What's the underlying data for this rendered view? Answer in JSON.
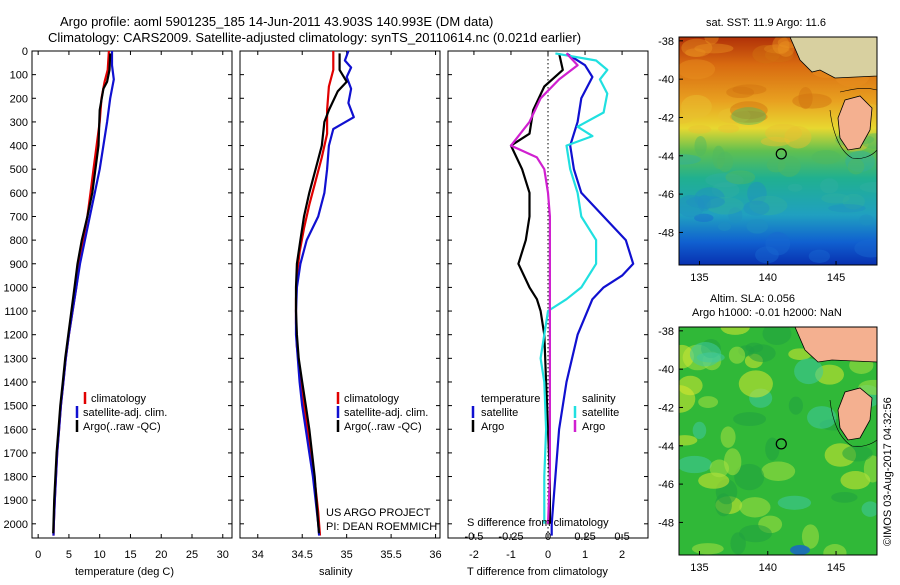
{
  "title": {
    "line1": "Argo profile: aoml 5901235_185 14-Jun-2011 43.903S 140.993E (DM data)",
    "line2": "Climatology: CARS2009. Satellite-adjusted climatology: synTS_20110614.nc (0.021d earlier)"
  },
  "colors": {
    "climatology": "#e00000",
    "satellite": "#1010d0",
    "argo": "#000000",
    "sat_s": "#20e0e0",
    "argo_s": "#d020d0"
  },
  "y_axis": {
    "ticks": [
      "0",
      "100",
      "200",
      "300",
      "400",
      "500",
      "600",
      "700",
      "800",
      "900",
      "1000",
      "1100",
      "1200",
      "1300",
      "1400",
      "1500",
      "1600",
      "1700",
      "1800",
      "1900",
      "2000"
    ]
  },
  "chart_data": [
    {
      "type": "line",
      "id": "temperature",
      "xlabel": "temperature (deg C)",
      "xlim": [
        -1,
        31.5
      ],
      "xticks": [
        "0",
        "5",
        "10",
        "15",
        "20",
        "25",
        "30"
      ],
      "ylim": [
        2060,
        0
      ],
      "legend": [
        "climatology",
        "satellite-adj. clim.",
        "Argo(..raw -QC)"
      ],
      "series": [
        {
          "name": "climatology",
          "color": "#e00000",
          "points": [
            [
              11.5,
              0
            ],
            [
              11.3,
              80
            ],
            [
              10.8,
              130
            ],
            [
              10.3,
              200
            ],
            [
              10.0,
              300
            ],
            [
              9.5,
              400
            ],
            [
              9.0,
              500
            ],
            [
              8.5,
              600
            ],
            [
              8.0,
              700
            ],
            [
              7.3,
              800
            ],
            [
              6.7,
              900
            ],
            [
              6.2,
              1000
            ],
            [
              5.6,
              1100
            ],
            [
              5.0,
              1200
            ],
            [
              4.5,
              1300
            ],
            [
              4.1,
              1400
            ],
            [
              3.7,
              1500
            ],
            [
              3.4,
              1600
            ],
            [
              3.1,
              1700
            ],
            [
              2.9,
              1800
            ],
            [
              2.7,
              1900
            ],
            [
              2.55,
              2000
            ],
            [
              2.5,
              2050
            ]
          ]
        },
        {
          "name": "satellite-adj. clim.",
          "color": "#1010d0",
          "points": [
            [
              12.0,
              0
            ],
            [
              12.0,
              60
            ],
            [
              12.3,
              120
            ],
            [
              11.7,
              200
            ],
            [
              11.2,
              300
            ],
            [
              10.6,
              400
            ],
            [
              10.0,
              500
            ],
            [
              9.2,
              600
            ],
            [
              8.4,
              700
            ],
            [
              7.6,
              800
            ],
            [
              6.8,
              900
            ],
            [
              6.2,
              1000
            ],
            [
              5.6,
              1100
            ],
            [
              5.0,
              1200
            ],
            [
              4.5,
              1300
            ],
            [
              4.1,
              1400
            ],
            [
              3.7,
              1500
            ],
            [
              3.4,
              1600
            ],
            [
              3.1,
              1700
            ],
            [
              2.9,
              1800
            ],
            [
              2.7,
              1900
            ],
            [
              2.55,
              2000
            ],
            [
              2.5,
              2050
            ]
          ]
        },
        {
          "name": "Argo(..raw -QC)",
          "color": "#000000",
          "points": [
            [
              11.7,
              10
            ],
            [
              11.6,
              80
            ],
            [
              11.2,
              130
            ],
            [
              10.6,
              160
            ],
            [
              10.0,
              250
            ],
            [
              9.8,
              400
            ],
            [
              9.3,
              500
            ],
            [
              8.8,
              600
            ],
            [
              8.0,
              700
            ],
            [
              7.1,
              800
            ],
            [
              6.4,
              900
            ],
            [
              5.9,
              1000
            ],
            [
              5.4,
              1100
            ],
            [
              4.9,
              1200
            ],
            [
              4.4,
              1300
            ],
            [
              4.0,
              1400
            ],
            [
              3.6,
              1500
            ],
            [
              3.3,
              1600
            ],
            [
              3.0,
              1700
            ],
            [
              2.8,
              1800
            ],
            [
              2.6,
              1900
            ],
            [
              2.5,
              2000
            ],
            [
              2.45,
              2040
            ]
          ]
        }
      ]
    },
    {
      "type": "line",
      "id": "salinity",
      "xlabel": "salinity",
      "xlim": [
        33.8,
        36.05
      ],
      "xticks": [
        "34",
        "34.5",
        "35",
        "35.5",
        "36"
      ],
      "ylim": [
        2060,
        0
      ],
      "legend": [
        "climatology",
        "satellite-adj. clim.",
        "Argo(..raw -QC)"
      ],
      "annotation": [
        "US ARGO PROJECT",
        "PI: DEAN ROEMMICH"
      ],
      "series": [
        {
          "name": "climatology",
          "color": "#e00000",
          "points": [
            [
              34.85,
              0
            ],
            [
              34.85,
              80
            ],
            [
              34.8,
              150
            ],
            [
              34.78,
              250
            ],
            [
              34.78,
              350
            ],
            [
              34.72,
              450
            ],
            [
              34.65,
              550
            ],
            [
              34.58,
              650
            ],
            [
              34.52,
              750
            ],
            [
              34.47,
              850
            ],
            [
              34.44,
              950
            ],
            [
              34.43,
              1050
            ],
            [
              34.43,
              1150
            ],
            [
              34.44,
              1250
            ],
            [
              34.47,
              1350
            ],
            [
              34.5,
              1450
            ],
            [
              34.54,
              1550
            ],
            [
              34.58,
              1650
            ],
            [
              34.62,
              1750
            ],
            [
              34.65,
              1850
            ],
            [
              34.68,
              1950
            ],
            [
              34.7,
              2050
            ]
          ]
        },
        {
          "name": "satellite-adj. clim.",
          "color": "#1010d0",
          "points": [
            [
              35.02,
              0
            ],
            [
              34.98,
              40
            ],
            [
              35.05,
              70
            ],
            [
              35.0,
              110
            ],
            [
              35.05,
              160
            ],
            [
              35.02,
              220
            ],
            [
              35.08,
              280
            ],
            [
              34.85,
              330
            ],
            [
              34.8,
              400
            ],
            [
              34.78,
              500
            ],
            [
              34.75,
              600
            ],
            [
              34.68,
              700
            ],
            [
              34.55,
              800
            ],
            [
              34.48,
              900
            ],
            [
              34.44,
              1000
            ],
            [
              34.43,
              1100
            ],
            [
              34.43,
              1200
            ],
            [
              34.45,
              1300
            ],
            [
              34.47,
              1400
            ],
            [
              34.5,
              1500
            ],
            [
              34.54,
              1600
            ],
            [
              34.58,
              1700
            ],
            [
              34.62,
              1800
            ],
            [
              34.65,
              1900
            ],
            [
              34.68,
              2000
            ],
            [
              34.69,
              2050
            ]
          ]
        },
        {
          "name": "Argo(..raw -QC)",
          "color": "#000000",
          "points": [
            [
              34.92,
              10
            ],
            [
              34.92,
              80
            ],
            [
              35.0,
              130
            ],
            [
              34.9,
              170
            ],
            [
              34.8,
              250
            ],
            [
              34.75,
              300
            ],
            [
              34.72,
              400
            ],
            [
              34.65,
              500
            ],
            [
              34.58,
              600
            ],
            [
              34.52,
              700
            ],
            [
              34.48,
              800
            ],
            [
              34.44,
              900
            ],
            [
              34.43,
              1000
            ],
            [
              34.43,
              1100
            ],
            [
              34.44,
              1200
            ],
            [
              34.46,
              1300
            ],
            [
              34.5,
              1400
            ],
            [
              34.54,
              1500
            ],
            [
              34.58,
              1600
            ],
            [
              34.61,
              1700
            ],
            [
              34.64,
              1800
            ],
            [
              34.66,
              1900
            ],
            [
              34.68,
              2000
            ],
            [
              34.69,
              2040
            ]
          ]
        }
      ]
    },
    {
      "type": "line",
      "id": "difference",
      "xlabel": "T difference from climatology",
      "xlabel_top": "S difference from climatology",
      "xlim": [
        -2.7,
        2.7
      ],
      "xticks_T": [
        "-2",
        "-1",
        "0",
        "1",
        "2"
      ],
      "xticks_S": [
        "-0.5",
        "-0.25",
        "0",
        "0.25",
        "0.5"
      ],
      "ylim": [
        2060,
        0
      ],
      "legend": {
        "temperature_header": "temperature",
        "salinity_header": "salinity",
        "entries": [
          "satellite",
          "Argo",
          "satellite",
          "Argo"
        ]
      },
      "series": [
        {
          "name": "temperature satellite",
          "color": "#1010d0",
          "points": [
            [
              0.5,
              10
            ],
            [
              1.0,
              60
            ],
            [
              1.2,
              110
            ],
            [
              0.9,
              200
            ],
            [
              0.8,
              300
            ],
            [
              0.6,
              400
            ],
            [
              0.7,
              500
            ],
            [
              0.9,
              600
            ],
            [
              1.5,
              700
            ],
            [
              2.1,
              800
            ],
            [
              2.3,
              900
            ],
            [
              2.0,
              950
            ],
            [
              1.5,
              1000
            ],
            [
              1.2,
              1050
            ],
            [
              0.8,
              1200
            ],
            [
              0.5,
              1400
            ],
            [
              0.3,
              1600
            ],
            [
              0.2,
              1800
            ],
            [
              0.1,
              2000
            ],
            [
              0.1,
              2050
            ]
          ]
        },
        {
          "name": "temperature Argo",
          "color": "#000000",
          "points": [
            [
              0.3,
              10
            ],
            [
              0.4,
              80
            ],
            [
              -0.1,
              150
            ],
            [
              -0.4,
              250
            ],
            [
              -0.5,
              350
            ],
            [
              -1.0,
              400
            ],
            [
              -0.7,
              500
            ],
            [
              -0.5,
              600
            ],
            [
              -0.5,
              700
            ],
            [
              -0.6,
              800
            ],
            [
              -0.8,
              900
            ],
            [
              -0.5,
              1000
            ],
            [
              -0.3,
              1050
            ],
            [
              -0.2,
              1100
            ],
            [
              -0.1,
              1200
            ],
            [
              -0.05,
              1400
            ],
            [
              0.0,
              1600
            ],
            [
              0.05,
              1800
            ],
            [
              0.05,
              2000
            ]
          ]
        },
        {
          "name": "salinity satellite",
          "color": "#20e0e0",
          "points": [
            [
              0.2,
              10
            ],
            [
              1.3,
              40
            ],
            [
              1.6,
              80
            ],
            [
              1.4,
              120
            ],
            [
              1.6,
              180
            ],
            [
              1.5,
              260
            ],
            [
              0.8,
              320
            ],
            [
              1.2,
              360
            ],
            [
              0.5,
              400
            ],
            [
              0.6,
              500
            ],
            [
              0.8,
              600
            ],
            [
              0.9,
              700
            ],
            [
              1.3,
              800
            ],
            [
              1.3,
              900
            ],
            [
              0.9,
              1000
            ],
            [
              0.5,
              1050
            ],
            [
              0.0,
              1100
            ],
            [
              -0.1,
              1200
            ],
            [
              -0.2,
              1300
            ],
            [
              -0.1,
              1400
            ],
            [
              -0.05,
              1600
            ],
            [
              -0.1,
              1800
            ],
            [
              -0.1,
              2000
            ]
          ]
        },
        {
          "name": "salinity Argo",
          "color": "#d020d0",
          "points": [
            [
              0.5,
              10
            ],
            [
              0.8,
              60
            ],
            [
              0.3,
              120
            ],
            [
              -0.2,
              200
            ],
            [
              -0.5,
              300
            ],
            [
              -1.0,
              400
            ],
            [
              -0.3,
              450
            ],
            [
              -0.1,
              500
            ],
            [
              0.0,
              600
            ],
            [
              0.05,
              700
            ],
            [
              0.05,
              800
            ],
            [
              0.05,
              1000
            ],
            [
              0.05,
              1200
            ],
            [
              0.05,
              1400
            ],
            [
              0.05,
              1600
            ],
            [
              0.05,
              1800
            ],
            [
              0.0,
              2000
            ]
          ]
        }
      ]
    },
    {
      "type": "heatmap",
      "id": "sst-map",
      "title": "sat. SST: 11.9 Argo: 11.6",
      "xticks": [
        "135",
        "140",
        "145"
      ],
      "yticks": [
        "-38",
        "-40",
        "-42",
        "-44",
        "-46",
        "-48"
      ],
      "argo_position": [
        140.99,
        -43.9
      ]
    },
    {
      "type": "heatmap",
      "id": "sla-map",
      "title_line1": "Altim. SLA: 0.056",
      "title_line2": "Argo h1000: -0.01 h2000: NaN",
      "xticks": [
        "135",
        "140",
        "145"
      ],
      "yticks": [
        "-38",
        "-40",
        "-42",
        "-44",
        "-46",
        "-48"
      ],
      "argo_position": [
        140.99,
        -43.9
      ]
    }
  ],
  "watermark": "©IMOS 03-Aug-2017 04:32:56"
}
